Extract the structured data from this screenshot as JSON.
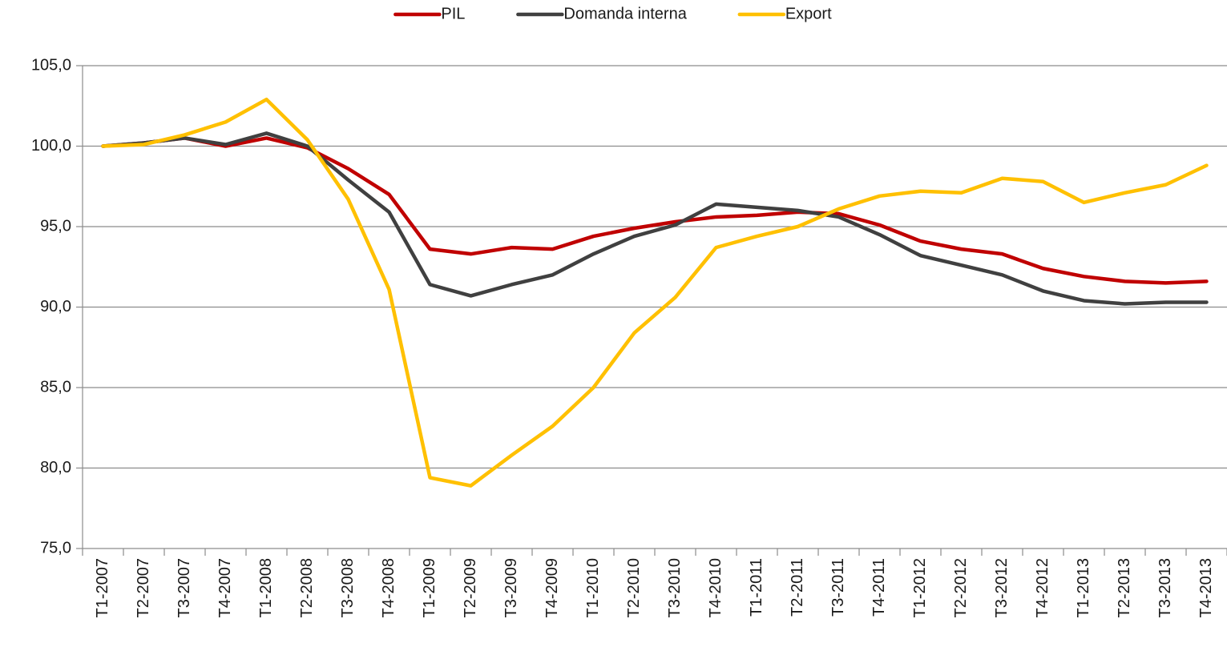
{
  "chart_data": {
    "type": "line",
    "categories": [
      "T1-2007",
      "T2-2007",
      "T3-2007",
      "T4-2007",
      "T1-2008",
      "T2-2008",
      "T3-2008",
      "T4-2008",
      "T1-2009",
      "T2-2009",
      "T3-2009",
      "T4-2009",
      "T1-2010",
      "T2-2010",
      "T3-2010",
      "T4-2010",
      "T1-2011",
      "T2-2011",
      "T3-2011",
      "T4-2011",
      "T1-2012",
      "T2-2012",
      "T3-2012",
      "T4-2012",
      "T1-2013",
      "T2-2013",
      "T3-2013",
      "T4-2013"
    ],
    "series": [
      {
        "name": "PIL",
        "color": "#c00000",
        "values": [
          100.0,
          100.2,
          100.5,
          100.0,
          100.5,
          99.9,
          98.6,
          97.0,
          93.6,
          93.3,
          93.7,
          93.6,
          94.4,
          94.9,
          95.3,
          95.6,
          95.7,
          95.9,
          95.8,
          95.1,
          94.1,
          93.6,
          93.3,
          92.4,
          91.9,
          91.6,
          91.5,
          91.6
        ]
      },
      {
        "name": "Domanda interna",
        "color": "#404040",
        "values": [
          100.0,
          100.2,
          100.5,
          100.1,
          100.8,
          100.0,
          97.9,
          95.9,
          91.4,
          90.7,
          91.4,
          92.0,
          93.3,
          94.4,
          95.1,
          96.4,
          96.2,
          96.0,
          95.6,
          94.5,
          93.2,
          92.6,
          92.0,
          91.0,
          90.4,
          90.2,
          90.3,
          90.3
        ]
      },
      {
        "name": "Export",
        "color": "#ffc000",
        "values": [
          100.0,
          100.1,
          100.7,
          101.5,
          102.9,
          100.4,
          96.7,
          91.1,
          79.4,
          78.9,
          80.8,
          82.6,
          85.0,
          88.4,
          90.6,
          93.7,
          94.4,
          95.0,
          96.1,
          96.9,
          97.2,
          97.1,
          98.0,
          97.8,
          96.5,
          97.1,
          97.6,
          98.8
        ]
      }
    ],
    "ylim": [
      75,
      105
    ],
    "yticks": [
      {
        "value": 75,
        "label": "75,0"
      },
      {
        "value": 80,
        "label": "80,0"
      },
      {
        "value": 85,
        "label": "85,0"
      },
      {
        "value": 90,
        "label": "90,0"
      },
      {
        "value": 95,
        "label": "95,0"
      },
      {
        "value": 100,
        "label": "100,0"
      },
      {
        "value": 105,
        "label": "105,0"
      }
    ],
    "grid": true,
    "legend": "top"
  }
}
